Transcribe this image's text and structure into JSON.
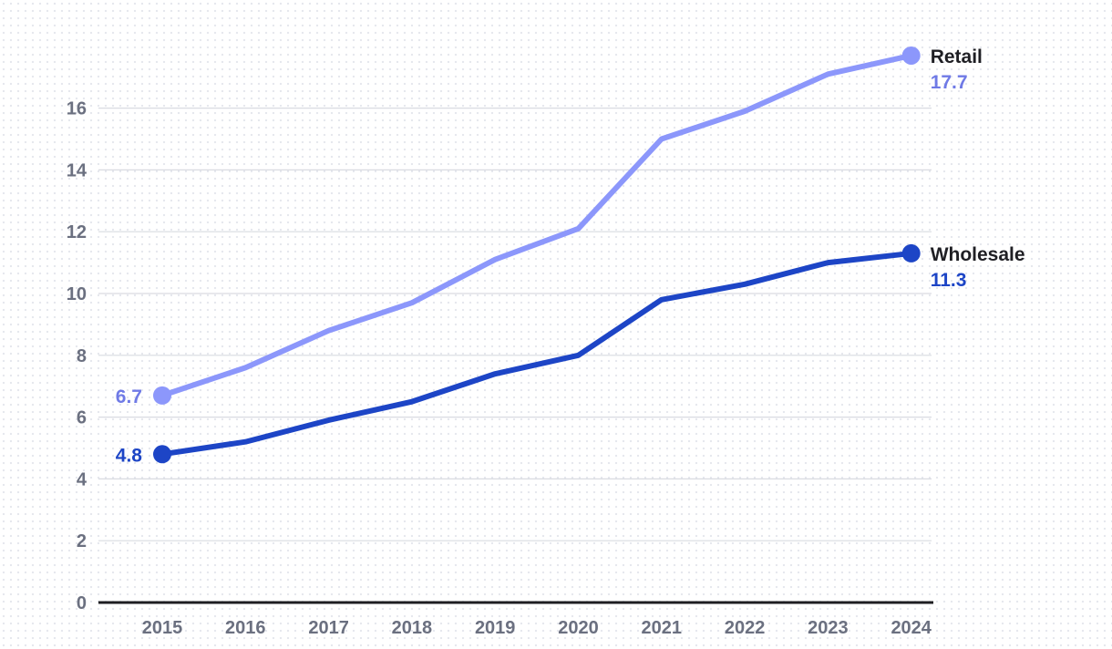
{
  "chart_data": {
    "type": "line",
    "title": "",
    "xlabel": "",
    "ylabel": "",
    "x": [
      "2015",
      "2016",
      "2017",
      "2018",
      "2019",
      "2020",
      "2021",
      "2022",
      "2023",
      "2024"
    ],
    "ylim": [
      0,
      18
    ],
    "yticks": [
      0,
      2,
      4,
      6,
      8,
      10,
      12,
      14,
      16
    ],
    "grid": true,
    "legend": "direct labels at line ends",
    "series": [
      {
        "name": "Retail",
        "color": "#8c97fb",
        "label_color": "#6f7ae6",
        "values": [
          6.7,
          7.6,
          8.8,
          9.7,
          11.1,
          12.1,
          15.0,
          15.9,
          17.1,
          17.7
        ],
        "start_label": "6.7",
        "end_label": "17.7"
      },
      {
        "name": "Wholesale",
        "color": "#1d45c6",
        "label_color": "#1d45c6",
        "values": [
          4.8,
          5.2,
          5.9,
          6.5,
          7.4,
          8.0,
          9.8,
          10.3,
          11.0,
          11.3
        ],
        "start_label": "4.8",
        "end_label": "11.3"
      }
    ]
  }
}
